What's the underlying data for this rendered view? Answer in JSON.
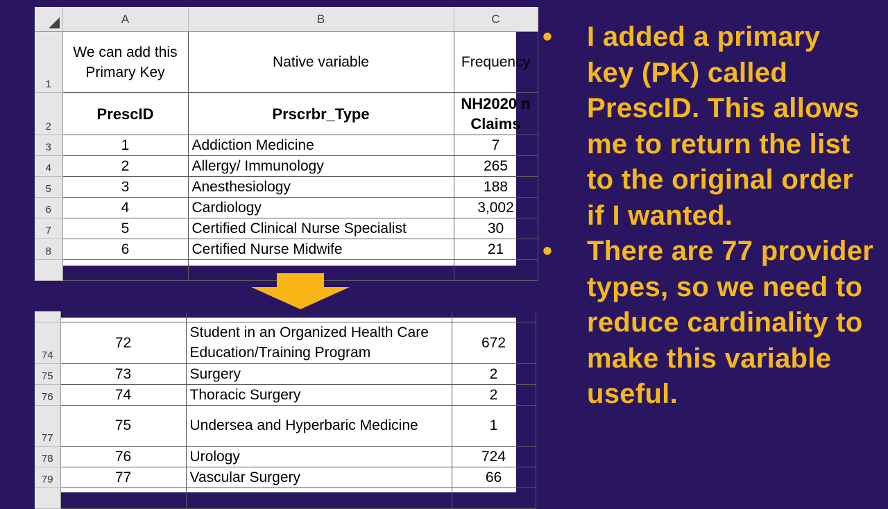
{
  "top_sheet": {
    "col_headers": {
      "a": "A",
      "b": "B",
      "c": "C"
    },
    "row1": {
      "num": "1",
      "a": "We can add this Primary Key",
      "b": "Native variable",
      "c": "Frequency"
    },
    "row2": {
      "num": "2",
      "a": "PrescID",
      "b": "Prscrbr_Type",
      "c": "NH2020 n Claims"
    },
    "rows": [
      {
        "num": "3",
        "a": "1",
        "b": "Addiction Medicine",
        "c": "7"
      },
      {
        "num": "4",
        "a": "2",
        "b": "Allergy/ Immunology",
        "c": "265"
      },
      {
        "num": "5",
        "a": "3",
        "b": "Anesthesiology",
        "c": "188"
      },
      {
        "num": "6",
        "a": "4",
        "b": "Cardiology",
        "c": "3,002"
      },
      {
        "num": "7",
        "a": "5",
        "b": "Certified Clinical Nurse Specialist",
        "c": "30"
      },
      {
        "num": "8",
        "a": "6",
        "b": "Certified Nurse Midwife",
        "c": "21"
      }
    ]
  },
  "bottom_sheet": {
    "rows": [
      {
        "num": "74",
        "a": "72",
        "b": "Student in an Organized Health Care Education/Training Program",
        "c": "672"
      },
      {
        "num": "75",
        "a": "73",
        "b": "Surgery",
        "c": "2"
      },
      {
        "num": "76",
        "a": "74",
        "b": "Thoracic Surgery",
        "c": "2"
      },
      {
        "num": "77",
        "a": "75",
        "b": "Undersea and Hyperbaric Medicine",
        "c": "1"
      },
      {
        "num": "78",
        "a": "76",
        "b": "Urology",
        "c": "724"
      },
      {
        "num": "79",
        "a": "77",
        "b": "Vascular Surgery",
        "c": "66"
      }
    ]
  },
  "bullets": {
    "symbol": "•",
    "one": "I added a primary key (PK) called PrescID. This allows me to return the list to the original order if I wanted.",
    "two": "There are 77 provider types, so we need to reduce cardinality to make this variable useful."
  },
  "colors": {
    "background": "#2a1660",
    "bullet_text": "#f5b81c",
    "arrow": "#f9b416"
  }
}
